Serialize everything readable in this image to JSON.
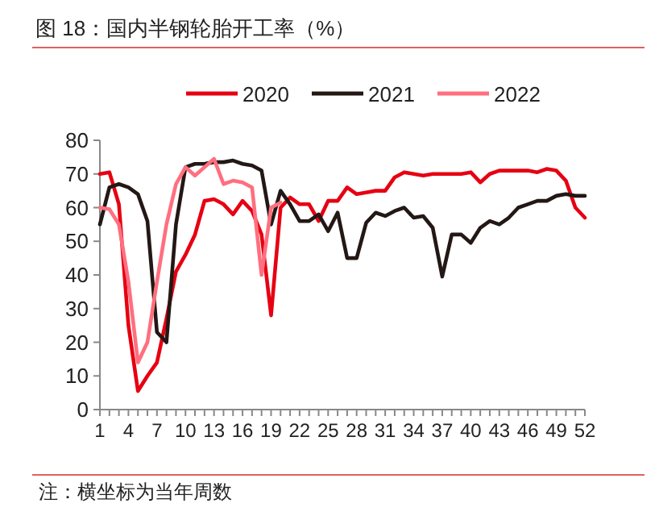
{
  "chart_data": {
    "type": "line",
    "title": "图 18：国内半钢轮胎开工率（%）",
    "categories": [
      "1",
      null,
      null,
      "4",
      null,
      null,
      "7",
      null,
      null,
      "10",
      null,
      null,
      "13",
      null,
      null,
      "16",
      null,
      null,
      "19",
      null,
      null,
      "22",
      null,
      null,
      "25",
      null,
      null,
      "28",
      null,
      null,
      "31",
      null,
      null,
      "34",
      null,
      null,
      "37",
      null,
      null,
      "40",
      null,
      null,
      "43",
      null,
      null,
      "46",
      null,
      null,
      "49",
      null,
      null,
      "52"
    ],
    "series": [
      {
        "name": "2020",
        "color": "#e60012",
        "values": [
          70,
          70.5,
          61,
          25,
          5.5,
          10,
          14,
          27,
          41,
          46,
          52,
          62,
          62.5,
          61,
          58,
          62,
          59,
          52,
          28,
          60,
          63,
          61,
          61,
          56,
          62,
          62,
          66,
          64,
          64.5,
          65,
          65,
          69,
          70.5,
          70,
          69.5,
          70,
          70,
          70,
          70,
          70.5,
          67.5,
          70,
          71,
          71,
          71,
          71,
          70.5,
          71.5,
          71,
          68,
          60,
          57
        ]
      },
      {
        "name": "2021",
        "color": "#231815",
        "values": [
          55,
          66,
          67,
          66,
          64,
          56,
          23,
          20,
          55,
          72,
          73,
          73,
          73.5,
          73.5,
          74,
          73,
          72.5,
          71,
          55,
          65,
          61,
          56,
          56,
          58,
          53,
          58.5,
          45,
          45,
          55.5,
          58.5,
          57.5,
          59,
          60,
          57,
          57.5,
          54,
          39.5,
          52,
          52,
          49.5,
          54,
          56,
          55,
          57,
          60,
          61,
          62,
          62,
          63.5,
          64,
          63.5,
          63.5
        ]
      },
      {
        "name": "2022",
        "color": "#ff6f7f",
        "values": [
          60,
          59.5,
          55,
          38,
          14,
          20,
          38,
          55,
          67,
          72,
          69.5,
          72,
          74.5,
          67,
          68,
          67.5,
          66,
          40,
          60,
          61.5,
          null,
          null,
          null,
          null,
          null,
          null,
          null,
          null,
          null,
          null,
          null,
          null,
          null,
          null,
          null,
          null,
          null,
          null,
          null,
          null,
          null,
          null,
          null,
          null,
          null,
          null,
          null,
          null,
          null,
          null,
          null,
          null
        ]
      }
    ],
    "ylim": [
      0,
      80
    ],
    "yticks": [
      0,
      10,
      20,
      30,
      40,
      50,
      60,
      70,
      80
    ],
    "legend": "top",
    "annotations": [
      "注：横坐标为当年周数"
    ]
  }
}
